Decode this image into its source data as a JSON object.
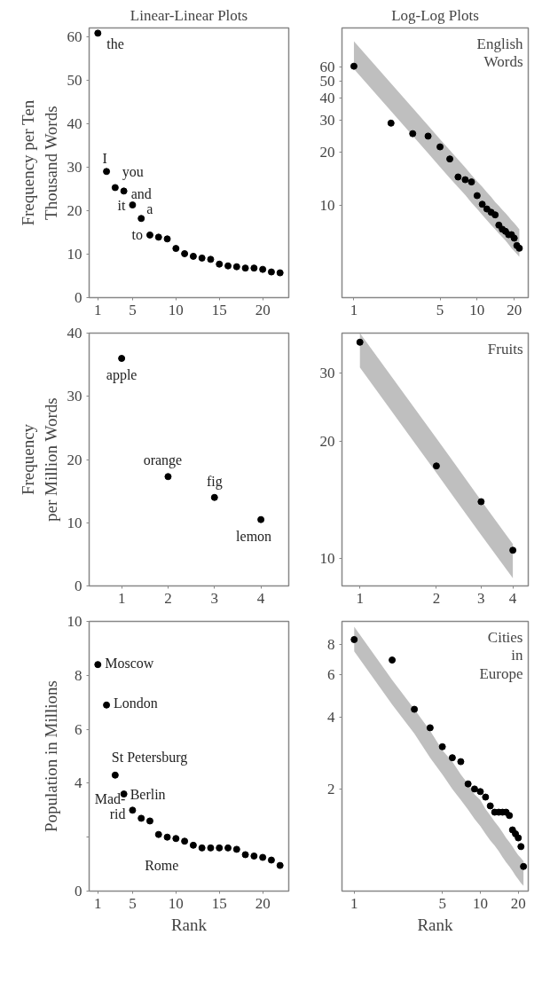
{
  "chart_data": [
    {
      "type": "scatter",
      "title": "Linear-Linear Plots",
      "ylabel": "Frequency per Ten\nThousand Words",
      "x": [
        1,
        2,
        3,
        4,
        5,
        6,
        7,
        8,
        9,
        10,
        11,
        12,
        13,
        14,
        15,
        16,
        17,
        18,
        19,
        20,
        21,
        22
      ],
      "xlim": [
        0,
        23
      ],
      "xticks": [
        1,
        5,
        10,
        15,
        20
      ],
      "ylim": [
        0,
        62
      ],
      "yticks": [
        0,
        10,
        20,
        30,
        40,
        50,
        60
      ],
      "marker": "circle",
      "grid": false,
      "series": [
        {
          "color": "#000000",
          "values": [
            60.8,
            29,
            25.3,
            24.5,
            21.3,
            18.2,
            14.4,
            13.9,
            13.5,
            11.3,
            10.1,
            9.5,
            9.1,
            8.8,
            7.7,
            7.3,
            7.1,
            6.8,
            6.8,
            6.5,
            5.9,
            5.7
          ]
        }
      ],
      "annotations": [
        {
          "text": "the",
          "x": 1,
          "y": 60.8
        },
        {
          "text": "I",
          "x": 2,
          "y": 29
        },
        {
          "text": "you",
          "x": 3,
          "y": 25.3
        },
        {
          "text": "and",
          "x": 4,
          "y": 24.5
        },
        {
          "text": "it",
          "x": 5,
          "y": 21.3
        },
        {
          "text": "a",
          "x": 6,
          "y": 18.2
        },
        {
          "text": "to",
          "x": 7,
          "y": 14.4
        }
      ]
    },
    {
      "type": "scatter",
      "title": "Log-Log Plots",
      "log": "xy",
      "x": [
        1,
        2,
        3,
        4,
        5,
        6,
        7,
        8,
        9,
        10,
        11,
        12,
        13,
        14,
        15,
        16,
        17,
        18,
        19,
        20,
        21,
        22
      ],
      "xlim": [
        0.8,
        26
      ],
      "xticks": [
        1,
        5,
        10,
        20
      ],
      "ylim": [
        3,
        100
      ],
      "yticks": [
        10,
        20,
        30,
        40,
        50,
        60
      ],
      "marker": "circle",
      "grid": false,
      "series": [
        {
          "color": "#000000",
          "values": [
            60.8,
            29,
            25.3,
            24.5,
            21.3,
            18.2,
            14.4,
            13.9,
            13.5,
            11.3,
            10.1,
            9.5,
            9.1,
            8.8,
            7.7,
            7.3,
            7.1,
            6.8,
            6.8,
            6.5,
            5.9,
            5.7
          ],
          "lower": [
            58.6,
            33.9,
            24.6,
            19.6,
            16.4,
            14.2,
            12.6,
            11.4,
            10.3,
            9.5,
            8.8,
            8.2,
            7.7,
            7.3,
            6.9,
            6.6,
            6.3,
            6.0,
            5.7,
            5.5,
            5.3,
            5.1
          ],
          "upper": [
            84,
            48.6,
            35.3,
            28.1,
            23.5,
            20.4,
            18.1,
            16.3,
            14.8,
            13.6,
            12.7,
            11.8,
            11.1,
            10.4,
            9.9,
            9.4,
            9.0,
            8.6,
            8.2,
            7.9,
            7.6,
            7.3
          ]
        }
      ],
      "annotations": [
        "English\nWords"
      ]
    },
    {
      "type": "scatter",
      "ylabel": "Frequency\nper Million Words",
      "x": [
        1,
        2,
        3,
        4
      ],
      "xlim": [
        0.3,
        4.6
      ],
      "xticks": [
        1,
        2,
        3,
        4
      ],
      "ylim": [
        0,
        40
      ],
      "yticks": [
        0,
        10,
        20,
        30,
        40
      ],
      "marker": "circle",
      "grid": false,
      "series": [
        {
          "color": "#000000",
          "values": [
            36,
            17.3,
            14,
            10.5
          ]
        }
      ],
      "annotations": [
        {
          "text": "apple",
          "x": 1,
          "y": 36
        },
        {
          "text": "orange",
          "x": 2,
          "y": 17.3
        },
        {
          "text": "fig",
          "x": 3,
          "y": 14
        },
        {
          "text": "lemon",
          "x": 4,
          "y": 10.5
        }
      ]
    },
    {
      "type": "scatter",
      "log": "xy",
      "x": [
        1,
        2,
        3,
        4
      ],
      "xlim": [
        0.85,
        4.6
      ],
      "xticks": [
        1,
        2,
        3,
        4
      ],
      "ylim": [
        8.5,
        38
      ],
      "yticks": [
        10,
        20,
        30
      ],
      "marker": "circle",
      "grid": false,
      "series": [
        {
          "color": "#000000",
          "values": [
            36,
            17.3,
            14,
            10.5
          ],
          "lower": [
            31,
            16.6,
            11.5,
            8.9
          ],
          "upper": [
            38,
            20.4,
            14.1,
            10.9
          ]
        }
      ],
      "annotations": [
        "Fruits"
      ]
    },
    {
      "type": "scatter",
      "ylabel": "Population in Millions",
      "xlabel": "Rank",
      "x": [
        1,
        2,
        3,
        4,
        5,
        6,
        7,
        8,
        9,
        10,
        11,
        12,
        13,
        14,
        15,
        16,
        17,
        18,
        19,
        20,
        21,
        22
      ],
      "xlim": [
        0,
        23
      ],
      "xticks": [
        1,
        5,
        10,
        15,
        20
      ],
      "ylim": [
        0,
        10
      ],
      "yticks": [
        0,
        {
          "value": 2,
          "label": null
        },
        4,
        6,
        8,
        10
      ],
      "marker": "circle",
      "grid": false,
      "series": [
        {
          "color": "#000000",
          "values": [
            8.4,
            6.9,
            4.3,
            3.6,
            3.0,
            2.7,
            2.6,
            2.1,
            2.0,
            1.95,
            1.85,
            1.7,
            1.6,
            1.6,
            1.6,
            1.6,
            1.55,
            1.35,
            1.3,
            1.25,
            1.15,
            0.95
          ]
        }
      ],
      "annotations": [
        {
          "text": "Moscow",
          "x": 1,
          "y": 8.4
        },
        {
          "text": "London",
          "x": 2,
          "y": 6.9
        },
        {
          "text": "St Petersburg",
          "x": 3,
          "y": 4.3
        },
        {
          "text": "Berlin",
          "x": 4,
          "y": 3.6
        },
        {
          "text": "Mad-\nrid",
          "x": 5,
          "y": 3.0
        },
        {
          "text": "Rome",
          "x": 6,
          "y": 2.7
        }
      ]
    },
    {
      "type": "scatter",
      "log": "xy",
      "xlabel": "Rank",
      "x": [
        1,
        2,
        3,
        4,
        5,
        6,
        7,
        8,
        9,
        10,
        11,
        12,
        13,
        14,
        15,
        16,
        17,
        18,
        19,
        20,
        21,
        22
      ],
      "xlim": [
        0.8,
        24
      ],
      "xticks": [
        1,
        5,
        10,
        20
      ],
      "ylim": [
        0.75,
        10
      ],
      "yticks": [
        2,
        4,
        6,
        8
      ],
      "marker": "circle",
      "grid": false,
      "series": [
        {
          "color": "#000000",
          "values": [
            8.4,
            6.9,
            4.3,
            3.6,
            3.0,
            2.7,
            2.6,
            2.1,
            2.0,
            1.95,
            1.85,
            1.7,
            1.6,
            1.6,
            1.6,
            1.6,
            1.55,
            1.35,
            1.3,
            1.25,
            1.15,
            0.95
          ],
          "lower": [
            7.5,
            4.5,
            3.4,
            2.7,
            2.3,
            2.0,
            1.8,
            1.64,
            1.5,
            1.4,
            1.3,
            1.22,
            1.16,
            1.1,
            1.04,
            0.99,
            0.95,
            0.91,
            0.87,
            0.84,
            0.81,
            0.79
          ],
          "upper": [
            9.5,
            5.7,
            4.3,
            3.5,
            2.9,
            2.6,
            2.3,
            2.1,
            1.9,
            1.8,
            1.65,
            1.55,
            1.46,
            1.39,
            1.32,
            1.25,
            1.2,
            1.15,
            1.1,
            1.06,
            1.03,
            1.0
          ]
        }
      ],
      "annotations": [
        "Cities\nin\nEurope"
      ]
    }
  ]
}
